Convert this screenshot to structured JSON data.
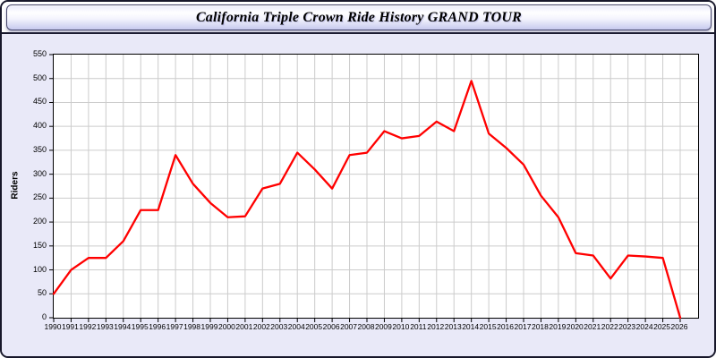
{
  "window": {
    "title": "California Triple Crown Ride History GRAND TOUR"
  },
  "colors": {
    "panel_bg": "#e9e9f8",
    "titlebar_gradient_top": "#ffffff",
    "titlebar_gradient_bottom": "#c6c9ee",
    "window_border": "#17172a",
    "plot_bg": "#ffffff",
    "grid": "#cccccc",
    "axis": "#000000",
    "line": "#ff0000"
  },
  "chart_data": {
    "type": "line",
    "title": "California Triple Crown Ride History GRAND TOUR",
    "xlabel": "",
    "ylabel": "Riders",
    "x": [
      1990,
      1991,
      1992,
      1993,
      1994,
      1995,
      1996,
      1997,
      1998,
      1999,
      2000,
      2001,
      2002,
      2003,
      2004,
      2005,
      2006,
      2007,
      2008,
      2009,
      2010,
      2011,
      2012,
      2013,
      2014,
      2015,
      2016,
      2017,
      2018,
      2019,
      2020,
      2021,
      2022,
      2023,
      2024,
      2025,
      2026
    ],
    "series": [
      {
        "name": "Riders",
        "values": [
          50,
          100,
          125,
          125,
          160,
          225,
          225,
          340,
          280,
          240,
          210,
          212,
          270,
          280,
          345,
          310,
          270,
          340,
          345,
          390,
          375,
          380,
          410,
          390,
          495,
          385,
          355,
          320,
          255,
          210,
          135,
          130,
          82,
          130,
          128,
          125,
          0
        ]
      }
    ],
    "ylim": [
      0,
      550
    ],
    "yticks": [
      0,
      50,
      100,
      150,
      200,
      250,
      300,
      350,
      400,
      450,
      500,
      550
    ],
    "ytick_step": 50,
    "grid": true,
    "legend": "none",
    "line_color": "#ff0000"
  }
}
